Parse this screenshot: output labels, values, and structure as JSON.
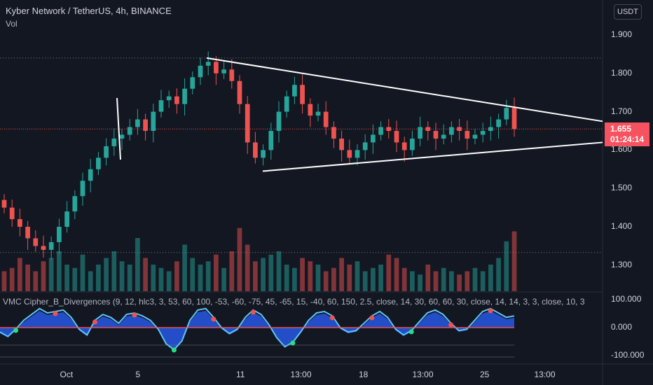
{
  "header": {
    "symbol_line": "Kyber Network / TetherUS, 4h, BINANCE",
    "volume_label": "Vol"
  },
  "currency_button": "USDT",
  "indicator": {
    "title": "VMC Cipher_B_Divergences (9, 12, hlc3, 3, 53, 60, 100, -53, -60, -75, 45, -65, 15, -40, 60, 150, 2.5, close, 14, 30, 60, 60, 30, close, 14, 14, 3, 3, close, 10, 3"
  },
  "last_price": {
    "price": "1.655",
    "countdown": "01:24:14"
  },
  "colors": {
    "background": "#131722",
    "up": "#26a69a",
    "down": "#ef5350",
    "price_box": "#f7525f",
    "trendline": "#ffffff",
    "wave_blue": "#2962ff",
    "wave_light": "#5fc6f5"
  },
  "chart_data": [
    {
      "type": "candlestick",
      "title": "Kyber Network / TetherUS, 4h, BINANCE",
      "y_axis": {
        "ticks": [
          "1.900",
          "1.800",
          "1.700",
          "1.600",
          "1.500",
          "1.400",
          "1.300"
        ],
        "range": [
          1.23,
          1.97
        ]
      },
      "x_axis": {
        "ticks": [
          "Oct",
          "5",
          "11",
          "13:00",
          "18",
          "13:00",
          "25",
          "13:00"
        ]
      },
      "last_price": 1.655,
      "trendlines": [
        {
          "name": "upper",
          "from": [
            "~Oct 7",
            1.84
          ],
          "to": [
            "right edge",
            1.675
          ]
        },
        {
          "name": "lower",
          "from": [
            "~Oct 11",
            1.545
          ],
          "to": [
            "right edge",
            1.62
          ]
        }
      ],
      "horizontal_levels": [
        1.84,
        1.333
      ],
      "candles_approx_close": [
        1.45,
        1.42,
        1.4,
        1.37,
        1.35,
        1.34,
        1.36,
        1.4,
        1.44,
        1.48,
        1.52,
        1.55,
        1.58,
        1.61,
        1.63,
        1.64,
        1.66,
        1.68,
        1.65,
        1.7,
        1.73,
        1.74,
        1.72,
        1.76,
        1.79,
        1.82,
        1.83,
        1.8,
        1.81,
        1.78,
        1.72,
        1.62,
        1.58,
        1.6,
        1.65,
        1.7,
        1.74,
        1.77,
        1.72,
        1.69,
        1.7,
        1.66,
        1.63,
        1.6,
        1.58,
        1.6,
        1.62,
        1.64,
        1.66,
        1.65,
        1.62,
        1.6,
        1.63,
        1.66,
        1.65,
        1.63,
        1.64,
        1.66,
        1.65,
        1.63,
        1.64,
        1.65,
        1.66,
        1.68,
        1.71,
        1.655
      ]
    },
    {
      "type": "bar",
      "title": "Vol",
      "values_relative": [
        0.3,
        0.35,
        0.5,
        0.4,
        0.3,
        0.45,
        0.5,
        0.6,
        0.4,
        0.35,
        0.55,
        0.3,
        0.4,
        0.5,
        0.6,
        0.45,
        0.4,
        0.8,
        0.5,
        0.4,
        0.35,
        0.3,
        0.45,
        0.7,
        0.5,
        0.4,
        0.45,
        0.55,
        0.35,
        0.6,
        0.95,
        0.7,
        0.45,
        0.5,
        0.55,
        0.6,
        0.4,
        0.35,
        0.5,
        0.45,
        0.4,
        0.3,
        0.35,
        0.5,
        0.4,
        0.45,
        0.3,
        0.35,
        0.4,
        0.55,
        0.5,
        0.35,
        0.3,
        0.25,
        0.4,
        0.3,
        0.35,
        0.3,
        0.25,
        0.3,
        0.35,
        0.3,
        0.4,
        0.5,
        0.75,
        0.9
      ]
    },
    {
      "type": "area",
      "title": "VMC Cipher_B_Divergences",
      "y_axis": {
        "ticks": [
          "100.000",
          "0.000",
          "-100.000"
        ]
      },
      "wave_values": [
        -20,
        -35,
        -10,
        20,
        40,
        60,
        45,
        50,
        55,
        30,
        -10,
        -30,
        20,
        40,
        30,
        10,
        40,
        45,
        35,
        20,
        -10,
        -60,
        -80,
        -50,
        20,
        55,
        60,
        30,
        -5,
        -25,
        -10,
        30,
        55,
        40,
        5,
        -40,
        -70,
        -55,
        -20,
        20,
        45,
        50,
        35,
        -5,
        -20,
        -15,
        10,
        35,
        50,
        30,
        -10,
        -30,
        -15,
        15,
        45,
        55,
        40,
        10,
        -15,
        -10,
        20,
        50,
        60,
        45,
        30,
        35
      ]
    }
  ]
}
